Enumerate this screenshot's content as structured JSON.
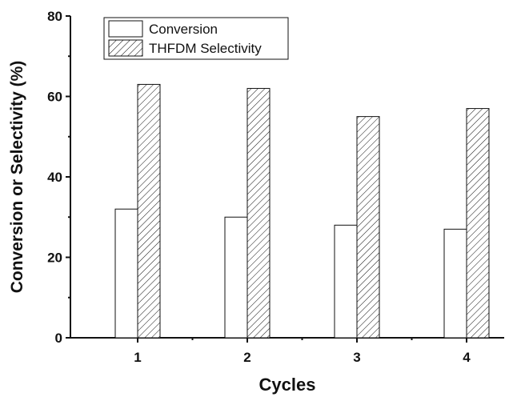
{
  "chart_data": {
    "type": "bar",
    "xlabel": "Cycles",
    "ylabel": "Conversion or Selectivity (%)",
    "categories": [
      "1",
      "2",
      "3",
      "4"
    ],
    "ylim": [
      0,
      80
    ],
    "yticks": [
      0,
      20,
      40,
      60,
      80
    ],
    "series": [
      {
        "name": "Conversion",
        "values": [
          32,
          30,
          28,
          27
        ],
        "fill": "#ffffff",
        "pattern": "none"
      },
      {
        "name": "THFDM Selectivity",
        "values": [
          63,
          62,
          55,
          57
        ],
        "fill": "#ffffff",
        "pattern": "diagonal-hatch"
      }
    ],
    "legend_position": "top-left",
    "grid": false
  },
  "colors": {
    "axis": "#111111",
    "bar_stroke": "#111111",
    "background": "#ffffff"
  }
}
